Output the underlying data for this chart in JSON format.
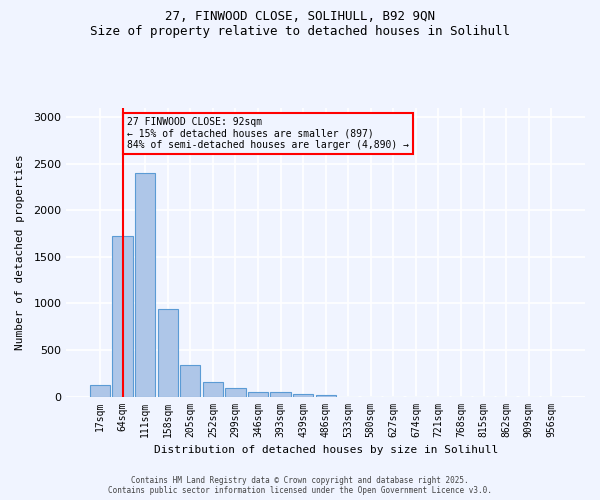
{
  "title_line1": "27, FINWOOD CLOSE, SOLIHULL, B92 9QN",
  "title_line2": "Size of property relative to detached houses in Solihull",
  "xlabel": "Distribution of detached houses by size in Solihull",
  "ylabel": "Number of detached properties",
  "footer_line1": "Contains HM Land Registry data © Crown copyright and database right 2025.",
  "footer_line2": "Contains public sector information licensed under the Open Government Licence v3.0.",
  "categories": [
    "17sqm",
    "64sqm",
    "111sqm",
    "158sqm",
    "205sqm",
    "252sqm",
    "299sqm",
    "346sqm",
    "393sqm",
    "439sqm",
    "486sqm",
    "533sqm",
    "580sqm",
    "627sqm",
    "674sqm",
    "721sqm",
    "768sqm",
    "815sqm",
    "862sqm",
    "909sqm",
    "956sqm"
  ],
  "values": [
    120,
    1720,
    2400,
    940,
    340,
    155,
    90,
    50,
    45,
    30,
    20,
    0,
    0,
    0,
    0,
    0,
    0,
    0,
    0,
    0,
    0
  ],
  "bar_color": "#aec6e8",
  "bar_edge_color": "#5b9bd5",
  "vline_x": 1,
  "vline_color": "red",
  "annotation_title": "27 FINWOOD CLOSE: 92sqm",
  "annotation_line2": "← 15% of detached houses are smaller (897)",
  "annotation_line3": "84% of semi-detached houses are larger (4,890) →",
  "annotation_box_color": "red",
  "ylim": [
    0,
    3100
  ],
  "yticks": [
    0,
    500,
    1000,
    1500,
    2000,
    2500,
    3000
  ],
  "background_color": "#f0f4ff",
  "grid_color": "#ffffff"
}
